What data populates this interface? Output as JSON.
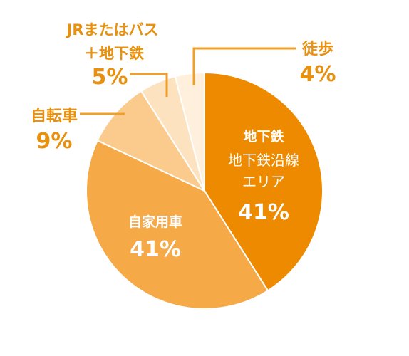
{
  "chart_data": {
    "type": "pie",
    "slices": [
      {
        "name": "地下鉄",
        "sublabel": [
          "地下鉄沿線",
          "エリア"
        ],
        "value": 41,
        "value_label": "41%",
        "color": "#ee8a00"
      },
      {
        "name": "自家用車",
        "value": 41,
        "value_label": "41%",
        "color": "#f5a947"
      },
      {
        "name": "自転車",
        "value": 9,
        "value_label": "9%",
        "color": "#fbcb8d"
      },
      {
        "name_lines": [
          "JRまたはバス",
          "＋地下鉄"
        ],
        "value": 5,
        "value_label": "5%",
        "color": "#fde2c0"
      },
      {
        "name": "徒歩",
        "value": 4,
        "value_label": "4%",
        "color": "#fff0dd"
      }
    ]
  }
}
